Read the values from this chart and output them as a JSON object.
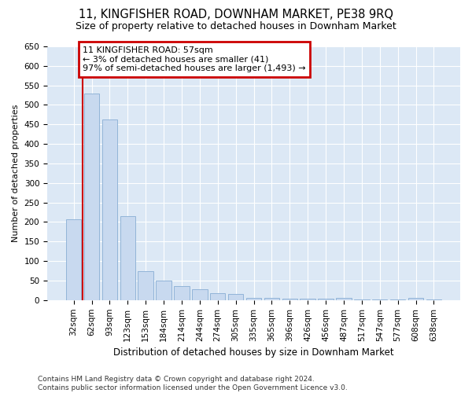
{
  "title": "11, KINGFISHER ROAD, DOWNHAM MARKET, PE38 9RQ",
  "subtitle": "Size of property relative to detached houses in Downham Market",
  "xlabel": "Distribution of detached houses by size in Downham Market",
  "ylabel": "Number of detached properties",
  "footer_line1": "Contains HM Land Registry data © Crown copyright and database right 2024.",
  "footer_line2": "Contains public sector information licensed under the Open Government Licence v3.0.",
  "annotation_line1": "11 KINGFISHER ROAD: 57sqm",
  "annotation_line2": "← 3% of detached houses are smaller (41)",
  "annotation_line3": "97% of semi-detached houses are larger (1,493) →",
  "bar_labels": [
    "32sqm",
    "62sqm",
    "93sqm",
    "123sqm",
    "153sqm",
    "184sqm",
    "214sqm",
    "244sqm",
    "274sqm",
    "305sqm",
    "335sqm",
    "365sqm",
    "396sqm",
    "426sqm",
    "456sqm",
    "487sqm",
    "517sqm",
    "547sqm",
    "577sqm",
    "608sqm",
    "638sqm"
  ],
  "bar_values": [
    207,
    530,
    462,
    215,
    75,
    50,
    35,
    28,
    18,
    15,
    5,
    5,
    3,
    3,
    3,
    5,
    2,
    2,
    2,
    5,
    2
  ],
  "bar_color": "#c8d9ef",
  "bar_edge_color": "#92b4d8",
  "ref_line_color": "#cc0000",
  "ylim": [
    0,
    650
  ],
  "yticks": [
    0,
    50,
    100,
    150,
    200,
    250,
    300,
    350,
    400,
    450,
    500,
    550,
    600,
    650
  ],
  "plot_bg_color": "#dce8f5",
  "grid_color": "#ffffff",
  "title_fontsize": 10.5,
  "subtitle_fontsize": 9,
  "annotation_fontsize": 8,
  "ylabel_fontsize": 8,
  "xlabel_fontsize": 8.5,
  "tick_fontsize": 7.5,
  "footer_fontsize": 6.5
}
